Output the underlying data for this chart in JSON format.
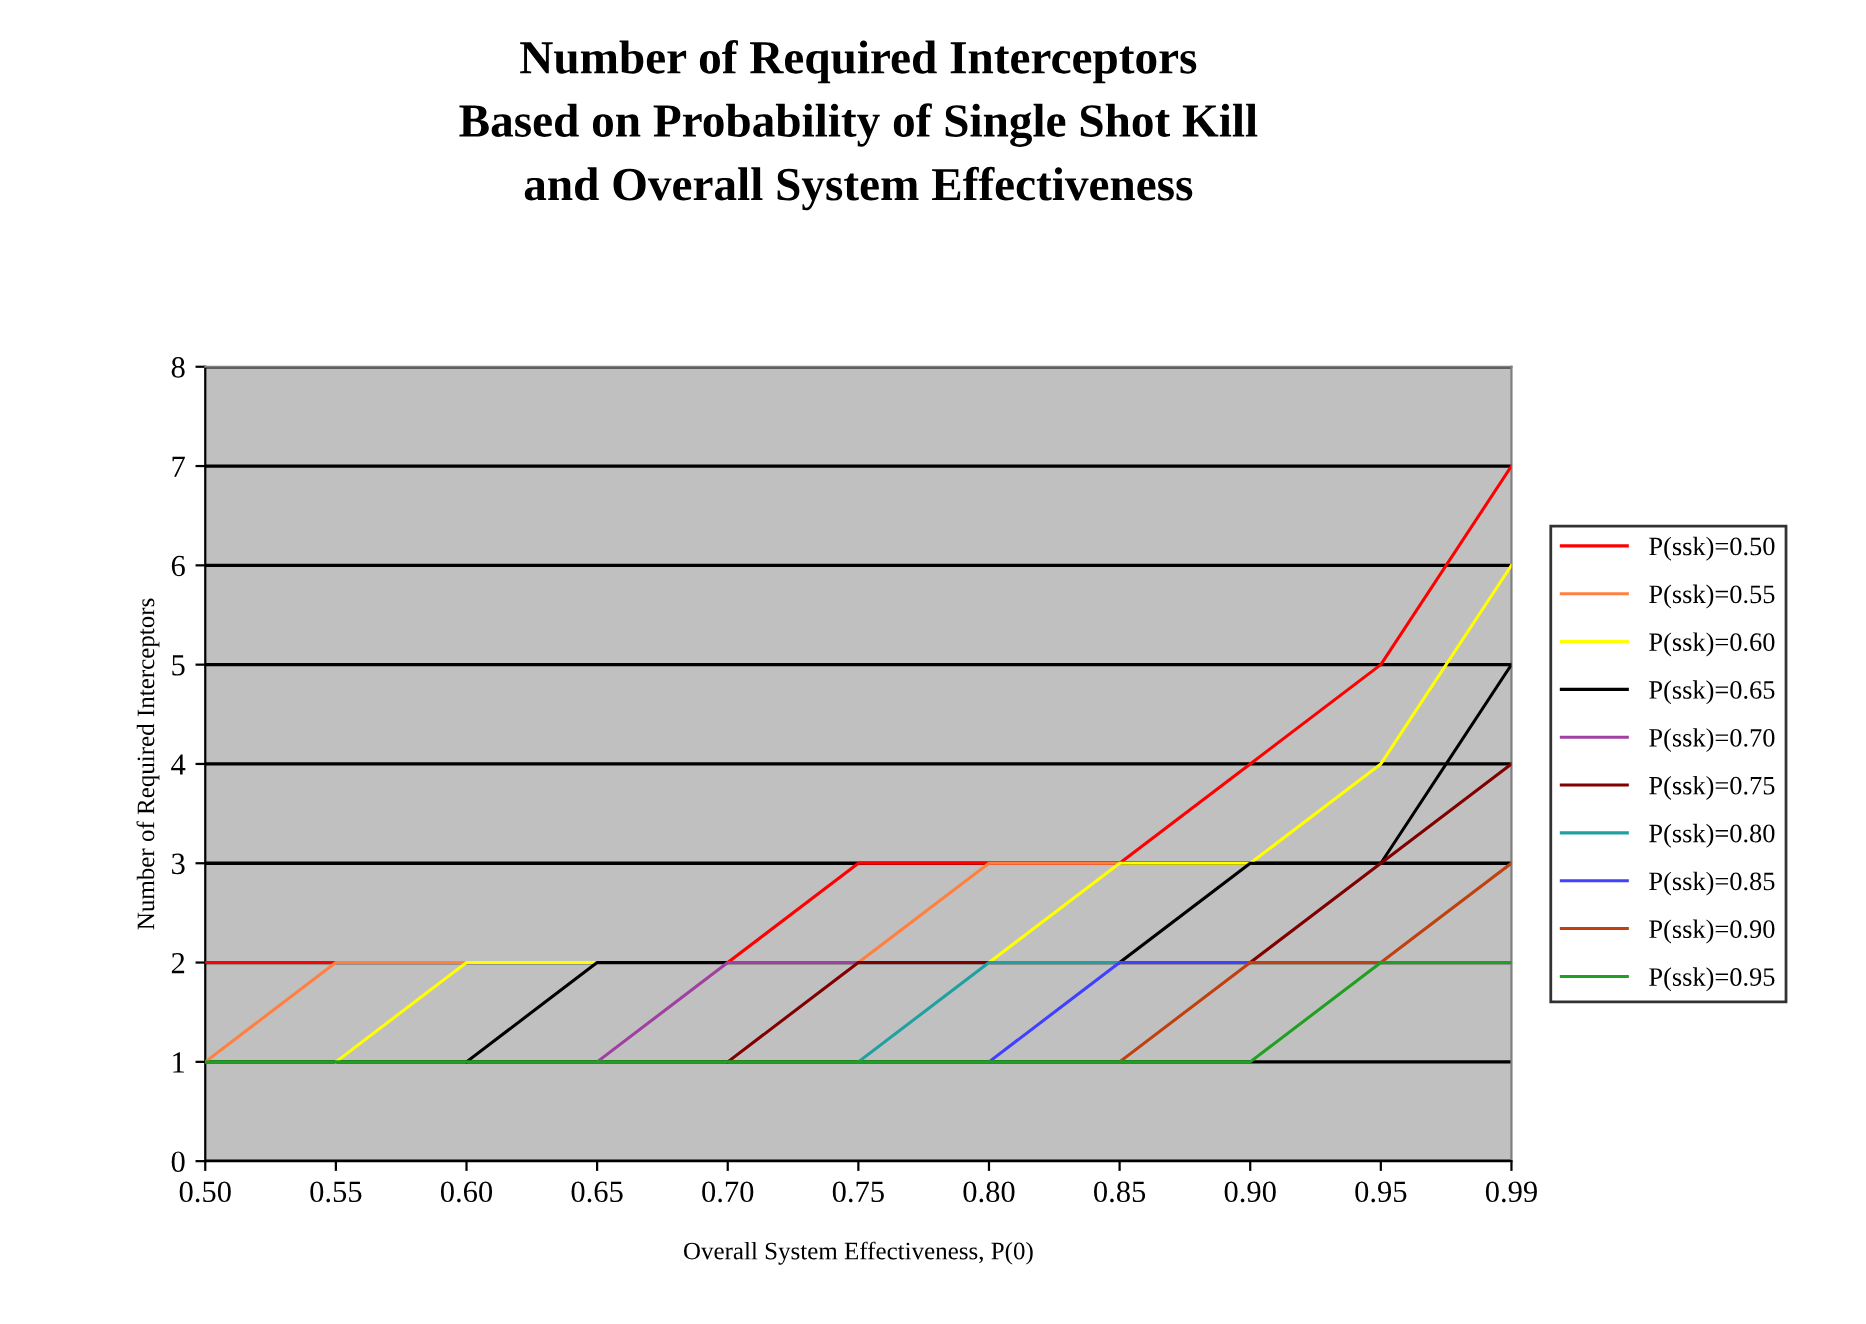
{
  "chart_data": {
    "type": "line",
    "title": "Number of Required Interceptors\nBased on Probability of Single Shot Kill\nand Overall System Effectiveness",
    "xlabel": "Overall System Effectiveness, P(0)",
    "ylabel": "Number of Required Interceptors",
    "categories": [
      "0.50",
      "0.55",
      "0.60",
      "0.65",
      "0.70",
      "0.75",
      "0.80",
      "0.85",
      "0.90",
      "0.95",
      "0.99"
    ],
    "ylim": [
      0,
      8
    ],
    "yticks": [
      0,
      1,
      2,
      3,
      4,
      5,
      6,
      7,
      8
    ],
    "grid": "y",
    "legend": "right",
    "marker": "none",
    "line_style": "solid",
    "series": [
      {
        "name": "P(ssk)=0.50",
        "color": "#ff0000",
        "values": [
          2,
          2,
          null,
          null,
          2,
          3,
          3,
          3,
          4,
          5,
          7
        ]
      },
      {
        "name": "P(ssk)=0.55",
        "color": "#ff8040",
        "values": [
          1,
          2,
          2,
          null,
          null,
          2,
          3,
          3,
          null,
          null,
          null
        ]
      },
      {
        "name": "P(ssk)=0.60",
        "color": "#ffff00",
        "values": [
          null,
          1,
          2,
          2,
          null,
          null,
          2,
          3,
          3,
          4,
          6
        ]
      },
      {
        "name": "P(ssk)=0.65",
        "color": "#000000",
        "values": [
          null,
          null,
          1,
          2,
          2,
          null,
          null,
          2,
          3,
          3,
          5
        ]
      },
      {
        "name": "P(ssk)=0.70",
        "color": "#a040a0",
        "values": [
          null,
          null,
          null,
          1,
          2,
          2,
          null,
          null,
          null,
          null,
          null
        ]
      },
      {
        "name": "P(ssk)=0.75",
        "color": "#800000",
        "values": [
          null,
          null,
          null,
          null,
          1,
          2,
          2,
          null,
          2,
          3,
          4
        ]
      },
      {
        "name": "P(ssk)=0.80",
        "color": "#20a0a0",
        "values": [
          null,
          null,
          null,
          null,
          null,
          1,
          2,
          2,
          null,
          null,
          null
        ]
      },
      {
        "name": "P(ssk)=0.85",
        "color": "#4040ff",
        "values": [
          null,
          null,
          null,
          null,
          null,
          null,
          1,
          2,
          2,
          null,
          null
        ]
      },
      {
        "name": "P(ssk)=0.90",
        "color": "#c04010",
        "values": [
          null,
          null,
          null,
          null,
          null,
          null,
          null,
          1,
          2,
          2,
          3
        ]
      },
      {
        "name": "P(ssk)=0.95",
        "color": "#20a020",
        "values": [
          1,
          1,
          1,
          1,
          1,
          1,
          1,
          1,
          1,
          2,
          2
        ]
      }
    ]
  }
}
